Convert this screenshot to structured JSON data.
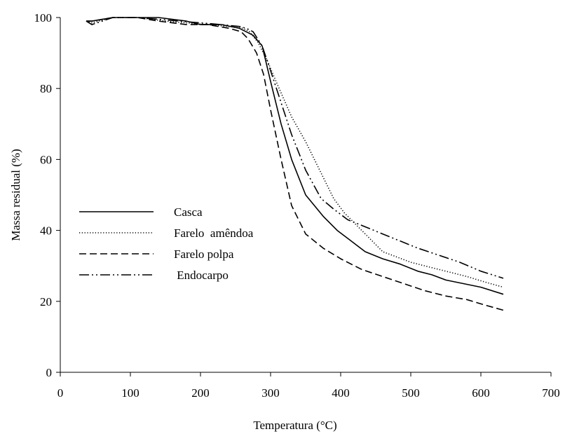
{
  "chart_data": {
    "type": "line",
    "xlabel": "Temperatura (°C)",
    "ylabel": "Massa residual (%)",
    "xlim": [
      0,
      700
    ],
    "ylim": [
      0,
      100
    ],
    "xticks": [
      "0",
      "100",
      "200",
      "300",
      "400",
      "500",
      "600",
      "700"
    ],
    "yticks": [
      "0",
      "20",
      "40",
      "60",
      "80",
      "100"
    ],
    "grid": false,
    "legend_position": "center-left",
    "series": [
      {
        "name": "Casca",
        "style": "solid",
        "color": "#000000",
        "x": [
          37,
          45,
          75,
          110,
          140,
          180,
          200,
          230,
          255,
          265,
          275,
          288,
          300,
          315,
          330,
          350,
          375,
          395,
          415,
          435,
          460,
          485,
          510,
          530,
          550,
          575,
          600,
          632
        ],
        "y": [
          99,
          99,
          100,
          100,
          100,
          99,
          98,
          98,
          97,
          96,
          95,
          92,
          82,
          70,
          60,
          50,
          44,
          40,
          37,
          34,
          32,
          30.5,
          28.5,
          27.5,
          26,
          25,
          24,
          22
        ]
      },
      {
        "name": "Farelo  amêndoa",
        "style": "dotted",
        "color": "#000000",
        "x": [
          37,
          45,
          75,
          110,
          130,
          150,
          180,
          210,
          240,
          260,
          270,
          282,
          295,
          310,
          330,
          350,
          370,
          390,
          405,
          420,
          440,
          460,
          480,
          500,
          520,
          550,
          580,
          605,
          632
        ],
        "y": [
          99,
          98.5,
          100,
          100,
          99.5,
          99,
          98.5,
          98,
          97.5,
          97,
          96,
          93,
          88,
          81,
          72,
          65,
          57,
          49,
          45,
          42,
          38,
          34,
          32.5,
          31,
          30,
          28.5,
          27,
          25.5,
          24
        ]
      },
      {
        "name": "Farelo polpa",
        "style": "dashed",
        "color": "#000000",
        "x": [
          37,
          45,
          75,
          110,
          140,
          180,
          210,
          240,
          258,
          268,
          280,
          290,
          300,
          315,
          330,
          350,
          375,
          400,
          430,
          460,
          490,
          520,
          550,
          580,
          605,
          632
        ],
        "y": [
          99,
          99,
          100,
          100,
          99,
          98,
          98,
          97,
          96,
          94,
          90,
          84,
          74,
          60,
          47,
          39,
          35,
          32,
          29,
          27,
          25,
          23,
          21.5,
          20.5,
          19,
          17.5
        ]
      },
      {
        "name": " Endocarpo",
        "style": "dashdotdot",
        "color": "#000000",
        "x": [
          37,
          45,
          75,
          110,
          140,
          170,
          200,
          230,
          255,
          265,
          275,
          288,
          300,
          315,
          330,
          350,
          372,
          390,
          410,
          435,
          460,
          485,
          510,
          540,
          570,
          600,
          632
        ],
        "y": [
          99,
          98,
          100,
          100,
          99.5,
          99,
          98.5,
          98,
          97.5,
          97,
          96,
          92,
          85,
          76,
          67,
          57,
          49,
          46,
          43,
          41,
          39,
          37,
          35,
          33,
          31,
          28.5,
          26.5
        ]
      }
    ]
  }
}
